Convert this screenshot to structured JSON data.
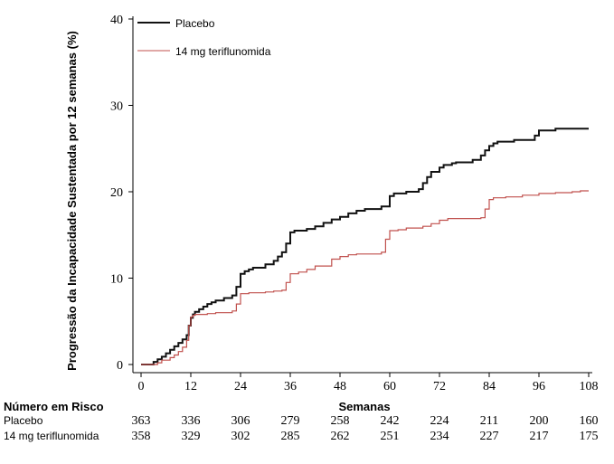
{
  "chart_data": {
    "type": "line",
    "style": "step",
    "ylabel": "Progressão da Incapacidade Sustentada por 12 semanas (%)",
    "xlabel": "Semanas",
    "xlim": [
      0,
      108
    ],
    "ylim": [
      0,
      40
    ],
    "xticks": [
      0,
      12,
      24,
      36,
      48,
      60,
      72,
      84,
      96,
      108
    ],
    "yticks": [
      0,
      10,
      20,
      30,
      40
    ],
    "legend_position": "top-left",
    "series": [
      {
        "name": "Placebo",
        "color": "#111111",
        "x": [
          0,
          3,
          4,
          5,
          6,
          7,
          8,
          9,
          10,
          11,
          11.5,
          12,
          12.5,
          13,
          14,
          15,
          16,
          17,
          18,
          20,
          22,
          23,
          24,
          25,
          26,
          27,
          30,
          32,
          33,
          34,
          35,
          36,
          37,
          40,
          42,
          44,
          46,
          48,
          50,
          52,
          54,
          58,
          60,
          61,
          64,
          67,
          68,
          69,
          70,
          72,
          73,
          75,
          76,
          80,
          82,
          83,
          84,
          85,
          86,
          90,
          95,
          96,
          100,
          108
        ],
        "y": [
          0,
          0.3,
          0.6,
          0.9,
          1.3,
          1.7,
          2.1,
          2.5,
          2.9,
          3.4,
          4.5,
          5.4,
          5.8,
          6.1,
          6.4,
          6.7,
          7.0,
          7.2,
          7.4,
          7.7,
          8.0,
          9.0,
          10.5,
          10.8,
          11.0,
          11.2,
          11.6,
          12.0,
          12.5,
          13.0,
          14.0,
          15.3,
          15.5,
          15.7,
          16.0,
          16.4,
          16.8,
          17.1,
          17.5,
          17.8,
          18.0,
          18.3,
          19.5,
          19.8,
          20.0,
          20.3,
          21.0,
          21.7,
          22.3,
          22.8,
          23.1,
          23.3,
          23.4,
          23.7,
          24.2,
          24.8,
          25.3,
          25.6,
          25.8,
          26.0,
          26.5,
          27.1,
          27.3,
          27.3
        ]
      },
      {
        "name": "14 mg teriflunomida",
        "color": "#c0504d",
        "x": [
          0,
          4,
          5,
          7,
          8,
          9,
          10,
          11,
          11.5,
          12,
          12.5,
          13,
          14,
          16,
          18,
          20,
          22,
          23,
          24,
          26,
          30,
          32,
          34,
          35,
          36,
          38,
          40,
          42,
          46,
          48,
          50,
          52,
          58,
          59,
          60,
          62,
          64,
          68,
          70,
          72,
          74,
          82,
          83,
          84,
          85,
          88,
          92,
          96,
          100,
          104,
          106,
          108
        ],
        "y": [
          0,
          0.2,
          0.5,
          0.8,
          1.1,
          1.5,
          2.0,
          2.8,
          4.5,
          5.5,
          5.7,
          5.8,
          5.8,
          5.9,
          6.0,
          6.0,
          6.2,
          7.0,
          8.2,
          8.3,
          8.4,
          8.5,
          8.6,
          9.5,
          10.5,
          10.7,
          11.0,
          11.4,
          12.2,
          12.5,
          12.7,
          12.8,
          13.0,
          14.5,
          15.5,
          15.6,
          15.8,
          16.0,
          16.3,
          16.7,
          16.9,
          17.0,
          18.0,
          19.1,
          19.3,
          19.4,
          19.6,
          19.8,
          19.9,
          20.0,
          20.1,
          20.1
        ]
      }
    ],
    "risk_table": {
      "title": "Número em Risco",
      "weeks": [
        0,
        12,
        24,
        36,
        48,
        60,
        72,
        84,
        96,
        108
      ],
      "rows": [
        {
          "label": "Placebo",
          "values": [
            "363",
            "336",
            "306",
            "279",
            "258",
            "242",
            "224",
            "211",
            "200",
            "160"
          ]
        },
        {
          "label": "14 mg teriflunomida",
          "values": [
            "358",
            "329",
            "302",
            "285",
            "262",
            "251",
            "234",
            "227",
            "217",
            "175"
          ]
        }
      ]
    }
  }
}
